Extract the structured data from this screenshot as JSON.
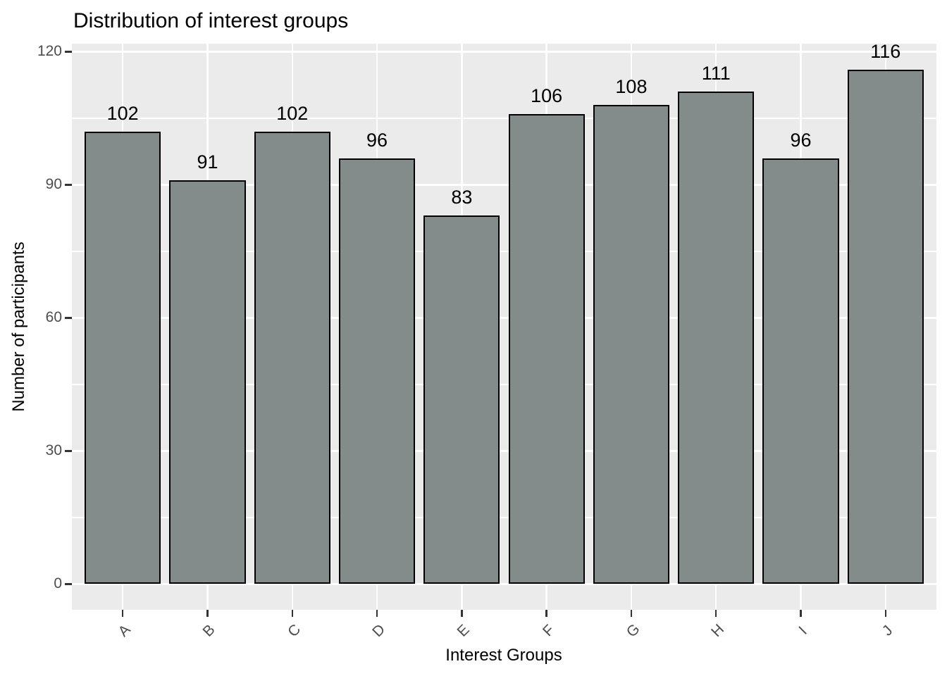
{
  "chart_data": {
    "type": "bar",
    "title": "Distribution of interest groups",
    "xlabel": "Interest Groups",
    "ylabel": "Number of participants",
    "categories": [
      "A",
      "B",
      "C",
      "D",
      "E",
      "F",
      "G",
      "H",
      "I",
      "J"
    ],
    "values": [
      102,
      91,
      102,
      96,
      83,
      106,
      108,
      111,
      96,
      116
    ],
    "yticks_major": [
      0,
      30,
      60,
      90,
      120
    ],
    "yticks_minor": [
      15,
      45,
      75,
      105
    ],
    "ylim": [
      -5.8,
      121.8
    ],
    "grid": "major and minor horizontal white lines, major vertical white lines at category centers",
    "legend": "none",
    "bar_value_labels_shown": true,
    "colors": {
      "bar_fill": "#838B8B",
      "bar_stroke": "#000000",
      "panel_background": "#EBEBEB",
      "gridline": "#FFFFFF",
      "tick_label": "#4D4D4D",
      "tick_mark": "#333333",
      "text": "#000000",
      "figure_background": "#FFFFFF"
    }
  }
}
